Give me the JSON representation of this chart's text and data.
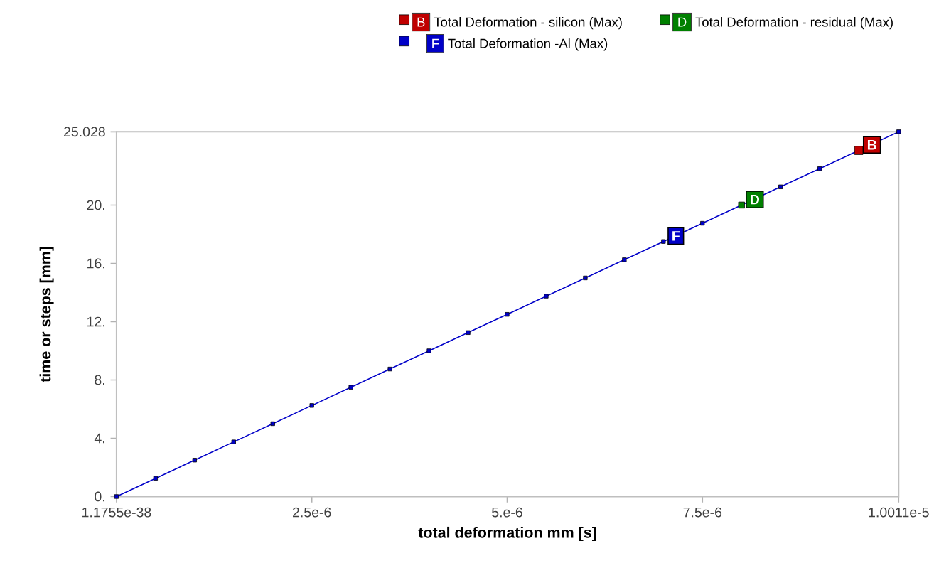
{
  "chart_data": {
    "type": "line",
    "xlabel": "total deformation mm [s]",
    "ylabel": "time or steps [mm]",
    "x": [
      0,
      5e-07,
      1e-06,
      1.5e-06,
      2e-06,
      2.5e-06,
      3e-06,
      3.5e-06,
      4e-06,
      4.5e-06,
      5e-06,
      5.5e-06,
      6e-06,
      6.5e-06,
      7e-06,
      7.5e-06,
      8e-06,
      8.5e-06,
      9e-06,
      9.5e-06,
      1.0011e-05
    ],
    "series": [
      {
        "name": "Total Deformation - silicon (Max)",
        "color": "#c00000",
        "values": [
          null,
          null,
          null,
          null,
          null,
          null,
          null,
          null,
          null,
          null,
          null,
          null,
          null,
          null,
          null,
          null,
          null,
          null,
          null,
          23.75,
          null
        ]
      },
      {
        "name": "Total Deformation - residual (Max)",
        "color": "#008000",
        "values": [
          null,
          null,
          null,
          null,
          null,
          null,
          null,
          null,
          null,
          null,
          null,
          null,
          null,
          null,
          null,
          null,
          20.0,
          null,
          null,
          null,
          null
        ]
      },
      {
        "name": "Total Deformation -Al (Max)",
        "color": "#0000c8",
        "values": [
          0,
          1.25,
          2.5,
          3.75,
          5.0,
          6.25,
          7.5,
          8.75,
          10.0,
          11.25,
          12.5,
          13.75,
          15.0,
          16.25,
          17.5,
          18.75,
          20.0,
          21.25,
          22.5,
          23.75,
          25.028
        ]
      }
    ],
    "annotations": [
      {
        "text": "B",
        "x": 9.5e-06,
        "y": 23.75
      },
      {
        "text": "D",
        "x": 8e-06,
        "y": 20.0
      },
      {
        "text": "F",
        "x": 7e-06,
        "y": 17.5
      }
    ],
    "xlim": [
      0,
      1.0011e-05
    ],
    "xticks": [
      {
        "value": 0,
        "label": "1.1755e-38"
      },
      {
        "value": 2.5e-06,
        "label": "2.5e-6"
      },
      {
        "value": 5e-06,
        "label": "5.e-6"
      },
      {
        "value": 7.5e-06,
        "label": "7.5e-6"
      },
      {
        "value": 1.0011e-05,
        "label": "1.0011e-5"
      }
    ],
    "ylim": [
      0,
      25.028
    ],
    "yticks": [
      {
        "value": 0,
        "label": "0."
      },
      {
        "value": 4,
        "label": "4."
      },
      {
        "value": 8,
        "label": "8."
      },
      {
        "value": 12,
        "label": "12."
      },
      {
        "value": 16,
        "label": "16."
      },
      {
        "value": 20,
        "label": "20."
      },
      25.028
    ],
    "marker": "square",
    "legend": "top"
  }
}
